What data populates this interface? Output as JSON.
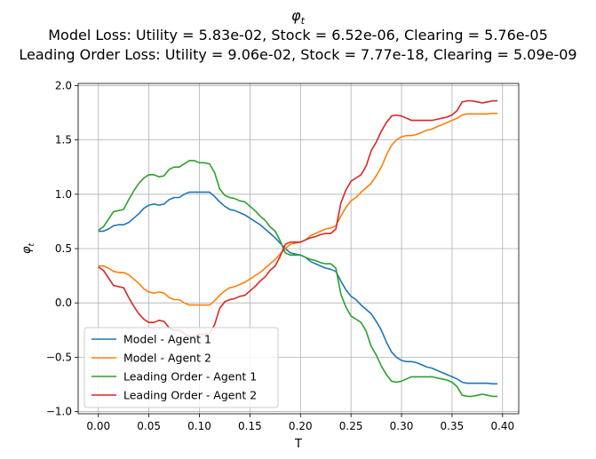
{
  "chart_data": {
    "type": "line",
    "title_lines": [
      "φ_t",
      "Model Loss: Utility = 5.83e-02, Stock = 6.52e-06, Clearing = 5.76e-05",
      "Leading Order Loss: Utility = 9.06e-02, Stock = 7.77e-18, Clearing = 5.09e-09"
    ],
    "xlabel": "T",
    "ylabel": "φ_t",
    "xlim": [
      -0.02,
      0.416
    ],
    "ylim": [
      -1.02,
      2.02
    ],
    "xticks": [
      0.0,
      0.05,
      0.1,
      0.15,
      0.2,
      0.25,
      0.3,
      0.35,
      0.4
    ],
    "xtick_labels": [
      "0.00",
      "0.05",
      "0.10",
      "0.15",
      "0.20",
      "0.25",
      "0.30",
      "0.35",
      "0.40"
    ],
    "yticks": [
      -1.0,
      -0.5,
      0.0,
      0.5,
      1.0,
      1.5,
      2.0
    ],
    "ytick_labels": [
      "−1.0",
      "−0.5",
      "0.0",
      "0.5",
      "1.0",
      "1.5",
      "2.0"
    ],
    "grid": true,
    "legend_position": "lower-left",
    "series": [
      {
        "name": "Model - Agent 1",
        "color": "#1f77b4",
        "x": [
          0.0,
          0.005,
          0.01,
          0.015,
          0.02,
          0.025,
          0.03,
          0.035,
          0.04,
          0.045,
          0.05,
          0.055,
          0.06,
          0.065,
          0.07,
          0.075,
          0.08,
          0.085,
          0.09,
          0.095,
          0.1,
          0.105,
          0.11,
          0.115,
          0.12,
          0.125,
          0.13,
          0.135,
          0.14,
          0.145,
          0.15,
          0.155,
          0.16,
          0.165,
          0.17,
          0.175,
          0.18,
          0.185,
          0.19,
          0.195,
          0.2,
          0.205,
          0.21,
          0.215,
          0.22,
          0.225,
          0.23,
          0.235,
          0.24,
          0.245,
          0.25,
          0.255,
          0.26,
          0.265,
          0.27,
          0.275,
          0.28,
          0.285,
          0.29,
          0.295,
          0.3,
          0.305,
          0.31,
          0.315,
          0.32,
          0.325,
          0.33,
          0.335,
          0.34,
          0.345,
          0.35,
          0.355,
          0.36,
          0.365,
          0.37,
          0.375,
          0.38,
          0.385,
          0.39,
          0.395
        ],
        "y": [
          0.66,
          0.66,
          0.68,
          0.71,
          0.72,
          0.72,
          0.74,
          0.78,
          0.82,
          0.87,
          0.9,
          0.91,
          0.9,
          0.91,
          0.95,
          0.97,
          0.97,
          1.0,
          1.02,
          1.02,
          1.02,
          1.02,
          1.02,
          0.98,
          0.93,
          0.89,
          0.86,
          0.85,
          0.83,
          0.81,
          0.78,
          0.75,
          0.72,
          0.68,
          0.64,
          0.6,
          0.55,
          0.5,
          0.46,
          0.45,
          0.44,
          0.42,
          0.38,
          0.36,
          0.34,
          0.32,
          0.31,
          0.29,
          0.2,
          0.12,
          0.06,
          0.03,
          -0.02,
          -0.06,
          -0.1,
          -0.17,
          -0.25,
          -0.36,
          -0.45,
          -0.5,
          -0.53,
          -0.54,
          -0.54,
          -0.55,
          -0.57,
          -0.59,
          -0.6,
          -0.62,
          -0.64,
          -0.66,
          -0.68,
          -0.7,
          -0.73,
          -0.74,
          -0.74,
          -0.74,
          -0.74,
          -0.74,
          -0.745,
          -0.745
        ]
      },
      {
        "name": "Model - Agent 2",
        "color": "#ff7f0e",
        "x": [
          0.0,
          0.005,
          0.01,
          0.015,
          0.02,
          0.025,
          0.03,
          0.035,
          0.04,
          0.045,
          0.05,
          0.055,
          0.06,
          0.065,
          0.07,
          0.075,
          0.08,
          0.085,
          0.09,
          0.095,
          0.1,
          0.105,
          0.11,
          0.115,
          0.12,
          0.125,
          0.13,
          0.135,
          0.14,
          0.145,
          0.15,
          0.155,
          0.16,
          0.165,
          0.17,
          0.175,
          0.18,
          0.185,
          0.19,
          0.195,
          0.2,
          0.205,
          0.21,
          0.215,
          0.22,
          0.225,
          0.23,
          0.235,
          0.24,
          0.245,
          0.25,
          0.255,
          0.26,
          0.265,
          0.27,
          0.275,
          0.28,
          0.285,
          0.29,
          0.295,
          0.3,
          0.305,
          0.31,
          0.315,
          0.32,
          0.325,
          0.33,
          0.335,
          0.34,
          0.345,
          0.35,
          0.355,
          0.36,
          0.365,
          0.37,
          0.375,
          0.38,
          0.385,
          0.39,
          0.395
        ],
        "y": [
          0.34,
          0.34,
          0.32,
          0.29,
          0.28,
          0.28,
          0.26,
          0.22,
          0.18,
          0.13,
          0.1,
          0.09,
          0.1,
          0.09,
          0.05,
          0.03,
          0.03,
          0.0,
          -0.02,
          -0.02,
          -0.02,
          -0.02,
          -0.02,
          0.02,
          0.07,
          0.11,
          0.14,
          0.15,
          0.17,
          0.19,
          0.22,
          0.25,
          0.28,
          0.32,
          0.36,
          0.4,
          0.45,
          0.5,
          0.54,
          0.55,
          0.56,
          0.58,
          0.62,
          0.64,
          0.66,
          0.68,
          0.69,
          0.71,
          0.8,
          0.88,
          0.94,
          0.97,
          1.02,
          1.06,
          1.1,
          1.17,
          1.25,
          1.36,
          1.45,
          1.5,
          1.53,
          1.54,
          1.54,
          1.55,
          1.57,
          1.59,
          1.6,
          1.62,
          1.64,
          1.66,
          1.68,
          1.7,
          1.73,
          1.74,
          1.74,
          1.74,
          1.74,
          1.74,
          1.745,
          1.745
        ]
      },
      {
        "name": "Leading Order - Agent 1",
        "color": "#2ca02c",
        "x": [
          0.0,
          0.005,
          0.01,
          0.015,
          0.02,
          0.025,
          0.03,
          0.035,
          0.04,
          0.045,
          0.05,
          0.055,
          0.06,
          0.065,
          0.07,
          0.075,
          0.08,
          0.085,
          0.09,
          0.095,
          0.1,
          0.105,
          0.11,
          0.115,
          0.12,
          0.125,
          0.13,
          0.135,
          0.14,
          0.145,
          0.15,
          0.155,
          0.16,
          0.165,
          0.17,
          0.175,
          0.18,
          0.185,
          0.19,
          0.195,
          0.2,
          0.205,
          0.21,
          0.215,
          0.22,
          0.225,
          0.23,
          0.235,
          0.24,
          0.245,
          0.25,
          0.255,
          0.26,
          0.265,
          0.27,
          0.275,
          0.28,
          0.285,
          0.29,
          0.295,
          0.3,
          0.305,
          0.31,
          0.315,
          0.32,
          0.325,
          0.33,
          0.335,
          0.34,
          0.345,
          0.35,
          0.355,
          0.36,
          0.365,
          0.37,
          0.375,
          0.38,
          0.385,
          0.39,
          0.395
        ],
        "y": [
          0.67,
          0.7,
          0.77,
          0.84,
          0.85,
          0.86,
          0.95,
          1.03,
          1.1,
          1.15,
          1.18,
          1.18,
          1.16,
          1.17,
          1.23,
          1.25,
          1.25,
          1.28,
          1.31,
          1.31,
          1.29,
          1.29,
          1.28,
          1.2,
          1.05,
          0.99,
          0.97,
          0.96,
          0.94,
          0.93,
          0.89,
          0.85,
          0.8,
          0.76,
          0.7,
          0.66,
          0.57,
          0.46,
          0.44,
          0.44,
          0.44,
          0.42,
          0.4,
          0.39,
          0.37,
          0.36,
          0.36,
          0.32,
          0.08,
          -0.04,
          -0.12,
          -0.15,
          -0.18,
          -0.26,
          -0.4,
          -0.48,
          -0.58,
          -0.66,
          -0.72,
          -0.73,
          -0.72,
          -0.7,
          -0.68,
          -0.68,
          -0.68,
          -0.68,
          -0.68,
          -0.69,
          -0.7,
          -0.71,
          -0.73,
          -0.77,
          -0.85,
          -0.86,
          -0.86,
          -0.85,
          -0.84,
          -0.85,
          -0.86,
          -0.86
        ]
      },
      {
        "name": "Leading Order - Agent 2",
        "color": "#d62728",
        "x": [
          0.0,
          0.005,
          0.01,
          0.015,
          0.02,
          0.025,
          0.03,
          0.035,
          0.04,
          0.045,
          0.05,
          0.055,
          0.06,
          0.065,
          0.07,
          0.075,
          0.08,
          0.085,
          0.09,
          0.095,
          0.1,
          0.105,
          0.11,
          0.115,
          0.12,
          0.125,
          0.13,
          0.135,
          0.14,
          0.145,
          0.15,
          0.155,
          0.16,
          0.165,
          0.17,
          0.175,
          0.18,
          0.185,
          0.19,
          0.195,
          0.2,
          0.205,
          0.21,
          0.215,
          0.22,
          0.225,
          0.23,
          0.235,
          0.24,
          0.245,
          0.25,
          0.255,
          0.26,
          0.265,
          0.27,
          0.275,
          0.28,
          0.285,
          0.29,
          0.295,
          0.3,
          0.305,
          0.31,
          0.315,
          0.32,
          0.325,
          0.33,
          0.335,
          0.34,
          0.345,
          0.35,
          0.355,
          0.36,
          0.365,
          0.37,
          0.375,
          0.38,
          0.385,
          0.39,
          0.395
        ],
        "y": [
          0.33,
          0.3,
          0.23,
          0.16,
          0.15,
          0.14,
          0.05,
          -0.03,
          -0.1,
          -0.15,
          -0.18,
          -0.18,
          -0.16,
          -0.17,
          -0.23,
          -0.25,
          -0.25,
          -0.28,
          -0.31,
          -0.31,
          -0.29,
          -0.29,
          -0.28,
          -0.2,
          -0.05,
          0.01,
          0.03,
          0.04,
          0.06,
          0.07,
          0.11,
          0.15,
          0.2,
          0.24,
          0.3,
          0.34,
          0.43,
          0.54,
          0.56,
          0.56,
          0.56,
          0.58,
          0.6,
          0.61,
          0.63,
          0.64,
          0.64,
          0.68,
          0.92,
          1.04,
          1.12,
          1.15,
          1.18,
          1.26,
          1.4,
          1.48,
          1.58,
          1.66,
          1.72,
          1.73,
          1.72,
          1.7,
          1.68,
          1.68,
          1.68,
          1.68,
          1.68,
          1.69,
          1.7,
          1.71,
          1.73,
          1.77,
          1.85,
          1.86,
          1.86,
          1.85,
          1.84,
          1.85,
          1.86,
          1.86
        ]
      }
    ]
  }
}
